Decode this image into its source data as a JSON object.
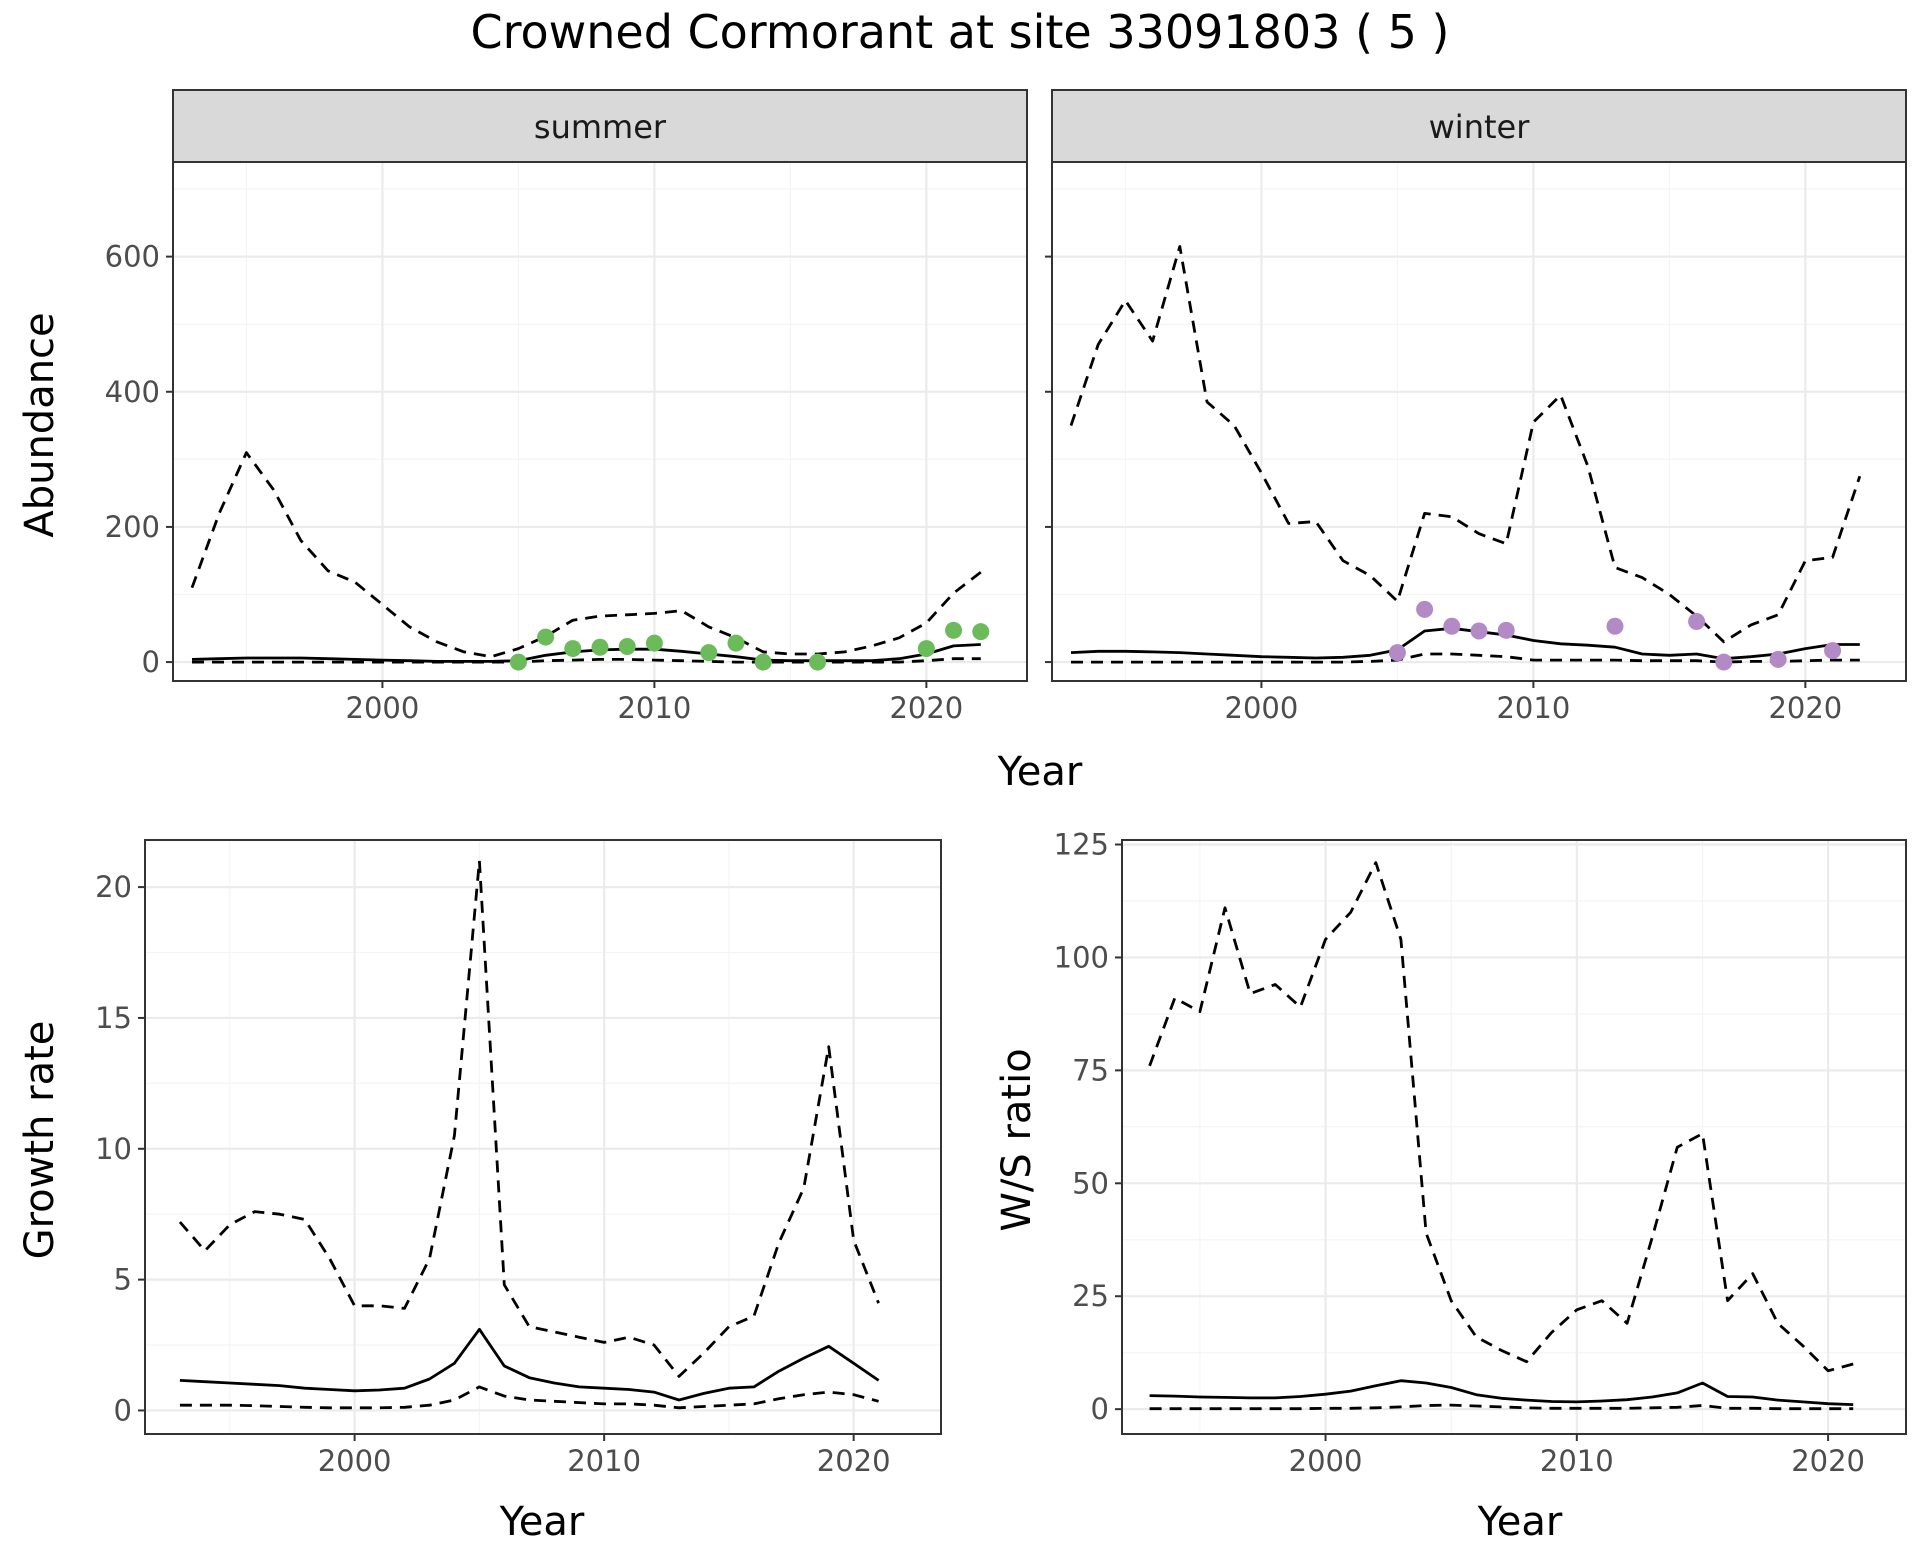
{
  "title": "Crowned Cormorant at site 33091803 ( 5 )",
  "colors": {
    "summer_points": "#6cbb5b",
    "winter_points": "#b48ac6",
    "line": "#000000",
    "grid_major": "#ebebeb",
    "grid_minor": "#f4f4f4",
    "strip_fill": "#d9d9d9",
    "panel_border": "#333333"
  },
  "chart_data": [
    {
      "type": "line",
      "facet": "summer",
      "xlabel": "Year",
      "ylabel": "Abundance",
      "xlim": [
        1992.3,
        2023.7
      ],
      "ylim": [
        -28,
        740
      ],
      "xticks": [
        2000,
        2010,
        2020
      ],
      "yticks": [
        0,
        200,
        400,
        600
      ],
      "grid": true,
      "series": [
        {
          "style": "solid",
          "x": [
            1993,
            1994,
            1995,
            1996,
            1997,
            1998,
            1999,
            2000,
            2001,
            2002,
            2003,
            2004,
            2005,
            2006,
            2007,
            2008,
            2009,
            2010,
            2011,
            2012,
            2013,
            2014,
            2015,
            2016,
            2017,
            2018,
            2019,
            2020,
            2021,
            2022
          ],
          "y": [
            4,
            5,
            6,
            6,
            6,
            5,
            4,
            3,
            2,
            1,
            1,
            1,
            2,
            10,
            15,
            18,
            19,
            19,
            16,
            12,
            8,
            3,
            2,
            2,
            2,
            2,
            5,
            12,
            24,
            26
          ]
        },
        {
          "style": "dashed",
          "x": [
            1993,
            1994,
            1995,
            1996,
            1997,
            1998,
            1999,
            2000,
            2001,
            2002,
            2003,
            2004,
            2005,
            2006,
            2007,
            2008,
            2009,
            2010,
            2011,
            2012,
            2013,
            2014,
            2015,
            2016,
            2017,
            2018,
            2019,
            2020,
            2021,
            2022
          ],
          "y": [
            110,
            220,
            310,
            255,
            180,
            135,
            118,
            85,
            52,
            30,
            15,
            8,
            20,
            38,
            62,
            68,
            70,
            72,
            76,
            52,
            36,
            15,
            12,
            12,
            15,
            24,
            36,
            58,
            102,
            133
          ]
        },
        {
          "style": "dashed",
          "x": [
            1993,
            1994,
            1995,
            1996,
            1997,
            1998,
            1999,
            2000,
            2001,
            2002,
            2003,
            2004,
            2005,
            2006,
            2007,
            2008,
            2009,
            2010,
            2011,
            2012,
            2013,
            2014,
            2015,
            2016,
            2017,
            2018,
            2019,
            2020,
            2021,
            2022
          ],
          "y": [
            0,
            0,
            0,
            0,
            0,
            0,
            0,
            0,
            0,
            0,
            0,
            0,
            0,
            2,
            3,
            4,
            4,
            3,
            2,
            1,
            0,
            0,
            0,
            0,
            0,
            0,
            0,
            2,
            5,
            5
          ]
        },
        {
          "style": "points",
          "x": [
            2005,
            2006,
            2007,
            2008,
            2009,
            2010,
            2012,
            2013,
            2014,
            2016,
            2020,
            2021,
            2022
          ],
          "y": [
            0,
            37,
            20,
            22,
            23,
            28,
            14,
            28,
            0,
            0,
            20,
            47,
            45
          ]
        }
      ]
    },
    {
      "type": "line",
      "facet": "winter",
      "xlabel": "Year",
      "ylabel": "Abundance",
      "xlim": [
        1992.3,
        2023.7
      ],
      "ylim": [
        -28,
        740
      ],
      "xticks": [
        2000,
        2010,
        2020
      ],
      "yticks": [
        0,
        200,
        400,
        600
      ],
      "grid": true,
      "series": [
        {
          "style": "solid",
          "x": [
            1993,
            1994,
            1995,
            1996,
            1997,
            1998,
            1999,
            2000,
            2001,
            2002,
            2003,
            2004,
            2005,
            2006,
            2007,
            2008,
            2009,
            2010,
            2011,
            2012,
            2013,
            2014,
            2015,
            2016,
            2017,
            2018,
            2019,
            2020,
            2021,
            2022
          ],
          "y": [
            14,
            16,
            16,
            15,
            14,
            12,
            10,
            8,
            7,
            6,
            7,
            10,
            18,
            46,
            50,
            45,
            40,
            32,
            27,
            25,
            22,
            12,
            10,
            12,
            5,
            8,
            12,
            20,
            26,
            26
          ]
        },
        {
          "style": "dashed",
          "x": [
            1993,
            1994,
            1995,
            1996,
            1997,
            1998,
            1999,
            2000,
            2001,
            2002,
            2003,
            2004,
            2005,
            2006,
            2007,
            2008,
            2009,
            2010,
            2011,
            2012,
            2013,
            2014,
            2015,
            2016,
            2017,
            2018,
            2019,
            2020,
            2021,
            2022
          ],
          "y": [
            350,
            470,
            535,
            475,
            615,
            385,
            350,
            280,
            205,
            208,
            150,
            128,
            90,
            220,
            215,
            190,
            175,
            355,
            395,
            290,
            140,
            125,
            100,
            68,
            30,
            55,
            70,
            150,
            155,
            275
          ]
        },
        {
          "style": "dashed",
          "x": [
            1993,
            1994,
            1995,
            1996,
            1997,
            1998,
            1999,
            2000,
            2001,
            2002,
            2003,
            2004,
            2005,
            2006,
            2007,
            2008,
            2009,
            2010,
            2011,
            2012,
            2013,
            2014,
            2015,
            2016,
            2017,
            2018,
            2019,
            2020,
            2021,
            2022
          ],
          "y": [
            0,
            0,
            0,
            0,
            0,
            0,
            0,
            0,
            0,
            0,
            0,
            1,
            3,
            12,
            12,
            10,
            8,
            3,
            3,
            3,
            3,
            2,
            2,
            2,
            0,
            1,
            1,
            2,
            3,
            3
          ]
        },
        {
          "style": "points",
          "x": [
            2005,
            2006,
            2007,
            2008,
            2009,
            2013,
            2016,
            2017,
            2019,
            2021
          ],
          "y": [
            14,
            78,
            53,
            46,
            47,
            53,
            60,
            0,
            4,
            17
          ]
        }
      ]
    },
    {
      "type": "line",
      "xlabel": "Year",
      "ylabel": "Growth rate",
      "xlim": [
        1991.6,
        2023.5
      ],
      "ylim": [
        -0.9,
        21.8
      ],
      "xticks": [
        2000,
        2010,
        2020
      ],
      "yticks": [
        0,
        5,
        10,
        15,
        20
      ],
      "grid": true,
      "series": [
        {
          "style": "solid",
          "x": [
            1993,
            1994,
            1995,
            1996,
            1997,
            1998,
            1999,
            2000,
            2001,
            2002,
            2003,
            2004,
            2005,
            2006,
            2007,
            2008,
            2009,
            2010,
            2011,
            2012,
            2013,
            2014,
            2015,
            2016,
            2017,
            2018,
            2019,
            2020,
            2021
          ],
          "y": [
            1.15,
            1.1,
            1.05,
            1.0,
            0.95,
            0.85,
            0.8,
            0.75,
            0.78,
            0.85,
            1.2,
            1.8,
            3.1,
            1.7,
            1.25,
            1.05,
            0.9,
            0.85,
            0.8,
            0.7,
            0.4,
            0.65,
            0.85,
            0.9,
            1.5,
            2.0,
            2.45,
            1.8,
            1.15
          ]
        },
        {
          "style": "dashed",
          "x": [
            1993,
            1994,
            1995,
            1996,
            1997,
            1998,
            1999,
            2000,
            2001,
            2002,
            2003,
            2004,
            2005,
            2006,
            2007,
            2008,
            2009,
            2010,
            2011,
            2012,
            2013,
            2014,
            2015,
            2016,
            2017,
            2018,
            2019,
            2020,
            2021
          ],
          "y": [
            7.2,
            6.1,
            7.1,
            7.6,
            7.5,
            7.3,
            5.8,
            4.0,
            4.0,
            3.9,
            5.8,
            10.5,
            21.0,
            4.8,
            3.2,
            3.0,
            2.8,
            2.6,
            2.8,
            2.5,
            1.3,
            2.2,
            3.2,
            3.6,
            6.4,
            8.5,
            13.9,
            6.5,
            4.1
          ]
        },
        {
          "style": "dashed",
          "x": [
            1993,
            1994,
            1995,
            1996,
            1997,
            1998,
            1999,
            2000,
            2001,
            2002,
            2003,
            2004,
            2005,
            2006,
            2007,
            2008,
            2009,
            2010,
            2011,
            2012,
            2013,
            2014,
            2015,
            2016,
            2017,
            2018,
            2019,
            2020,
            2021
          ],
          "y": [
            0.2,
            0.2,
            0.2,
            0.18,
            0.15,
            0.12,
            0.1,
            0.1,
            0.1,
            0.12,
            0.2,
            0.4,
            0.9,
            0.55,
            0.4,
            0.35,
            0.3,
            0.25,
            0.25,
            0.2,
            0.1,
            0.15,
            0.2,
            0.25,
            0.45,
            0.6,
            0.7,
            0.6,
            0.35
          ]
        }
      ]
    },
    {
      "type": "line",
      "xlabel": "Year",
      "ylabel": "W/S ratio",
      "xlim": [
        1991.9,
        2023.1
      ],
      "ylim": [
        -5.5,
        126
      ],
      "xticks": [
        2000,
        2010,
        2020
      ],
      "yticks": [
        0,
        25,
        50,
        75,
        100,
        125
      ],
      "grid": true,
      "series": [
        {
          "style": "solid",
          "x": [
            1993,
            1994,
            1995,
            1996,
            1997,
            1998,
            1999,
            2000,
            2001,
            2002,
            2003,
            2004,
            2005,
            2006,
            2007,
            2008,
            2009,
            2010,
            2011,
            2012,
            2013,
            2014,
            2015,
            2016,
            2017,
            2018,
            2019,
            2020,
            2021
          ],
          "y": [
            3.0,
            2.9,
            2.7,
            2.6,
            2.5,
            2.5,
            2.8,
            3.3,
            4.0,
            5.2,
            6.3,
            5.8,
            4.8,
            3.2,
            2.4,
            2.0,
            1.7,
            1.6,
            1.8,
            2.1,
            2.7,
            3.6,
            5.8,
            2.8,
            2.7,
            2.0,
            1.6,
            1.2,
            1.0
          ]
        },
        {
          "style": "dashed",
          "x": [
            1993,
            1994,
            1995,
            1996,
            1997,
            1998,
            1999,
            2000,
            2001,
            2002,
            2003,
            2004,
            2005,
            2006,
            2007,
            2008,
            2009,
            2010,
            2011,
            2012,
            2013,
            2014,
            2015,
            2016,
            2017,
            2018,
            2019,
            2020,
            2021
          ],
          "y": [
            76,
            91,
            88,
            111,
            92,
            94,
            89,
            104,
            110,
            121,
            104,
            39,
            24,
            16,
            13,
            10.5,
            17,
            22,
            24,
            19,
            38,
            58,
            61,
            24,
            30,
            19,
            14,
            8.5,
            10
          ]
        },
        {
          "style": "dashed",
          "x": [
            1993,
            1994,
            1995,
            1996,
            1997,
            1998,
            1999,
            2000,
            2001,
            2002,
            2003,
            2004,
            2005,
            2006,
            2007,
            2008,
            2009,
            2010,
            2011,
            2012,
            2013,
            2014,
            2015,
            2016,
            2017,
            2018,
            2019,
            2020,
            2021
          ],
          "y": [
            0.1,
            0.1,
            0.1,
            0.1,
            0.1,
            0.1,
            0.1,
            0.2,
            0.2,
            0.3,
            0.5,
            0.8,
            0.9,
            0.7,
            0.5,
            0.3,
            0.2,
            0.2,
            0.2,
            0.2,
            0.3,
            0.4,
            0.8,
            0.2,
            0.2,
            0.1,
            0.1,
            0.1,
            0.1
          ]
        }
      ]
    }
  ]
}
